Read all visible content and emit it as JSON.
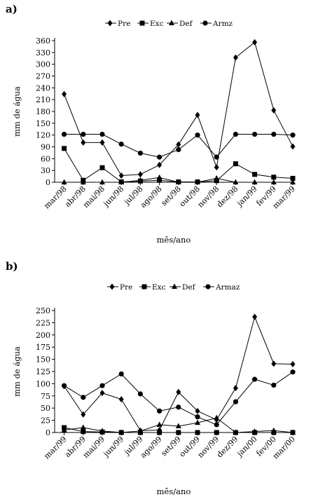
{
  "chart_data": [
    {
      "type": "line",
      "panel_label": "a)",
      "ylabel": "mm de água",
      "xlabel": "mês/ano",
      "ylim": [
        0,
        360
      ],
      "yticks": [
        0,
        30,
        60,
        90,
        120,
        150,
        180,
        210,
        240,
        270,
        300,
        330,
        360
      ],
      "legend_position": "top",
      "categories": [
        "mar/98",
        "abr/98",
        "mai/98",
        "jun/98",
        "jul/98",
        "ago/98",
        "set/98",
        "out/98",
        "nov/98",
        "dez/98",
        "jan/99",
        "fev/99",
        "mar/99"
      ],
      "series": [
        {
          "name": "Pre",
          "marker": "diamond",
          "values": [
            224,
            101,
            101,
            17,
            20,
            44,
            96,
            171,
            38,
            317,
            356,
            183,
            91
          ]
        },
        {
          "name": "Exc",
          "marker": "square",
          "values": [
            86,
            5,
            37,
            1,
            3,
            5,
            1,
            1,
            4,
            47,
            20,
            13,
            10
          ]
        },
        {
          "name": "Def",
          "marker": "triangle",
          "values": [
            0,
            0,
            0,
            0,
            5,
            12,
            0,
            0,
            10,
            0,
            0,
            0,
            0
          ]
        },
        {
          "name": "Armz",
          "marker": "circle",
          "values": [
            122,
            122,
            122,
            97,
            74,
            64,
            83,
            120,
            64,
            122,
            122,
            122,
            120
          ]
        }
      ]
    },
    {
      "type": "line",
      "panel_label": "b)",
      "ylabel": "mm de água",
      "xlabel": "mês/ano",
      "ylim": [
        0,
        250
      ],
      "yticks": [
        0,
        25,
        50,
        75,
        100,
        125,
        150,
        175,
        200,
        225,
        250
      ],
      "legend_position": "top",
      "categories": [
        "mar/99",
        "abr/99",
        "mai/99",
        "jun/99",
        "jul/99",
        "ago/99",
        "set/99",
        "out/99",
        "nov/99",
        "dez/99",
        "jan/00",
        "fev/00",
        "mar/00"
      ],
      "series": [
        {
          "name": "Pre",
          "marker": "diamond",
          "values": [
            95,
            37,
            81,
            68,
            4,
            5,
            83,
            44,
            26,
            91,
            237,
            141,
            140
          ]
        },
        {
          "name": "Exc",
          "marker": "square",
          "values": [
            10,
            2,
            1,
            0,
            0,
            0,
            0,
            0,
            0,
            0,
            0,
            0,
            0
          ]
        },
        {
          "name": "Def",
          "marker": "triangle",
          "values": [
            5,
            10,
            3,
            0,
            3,
            16,
            13,
            20,
            30,
            0,
            2,
            4,
            0
          ]
        },
        {
          "name": "Armaz",
          "marker": "circle",
          "values": [
            96,
            72,
            96,
            120,
            79,
            44,
            52,
            32,
            16,
            63,
            109,
            97,
            124
          ]
        }
      ]
    }
  ]
}
